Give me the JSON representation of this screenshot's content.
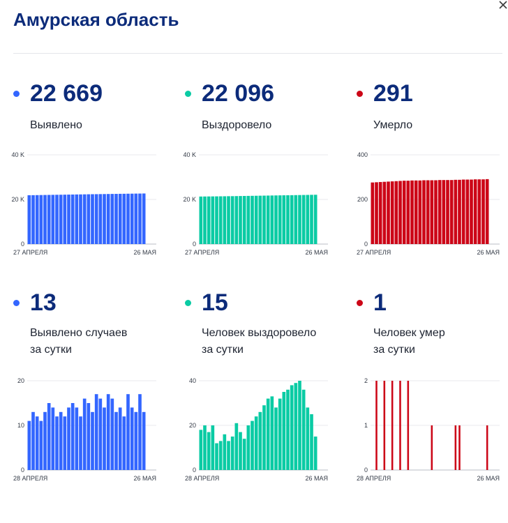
{
  "title": "Амурская область",
  "colors": {
    "blue": "#3366ff",
    "green": "#0acba4",
    "red": "#cc0617",
    "navy": "#0c2b7a"
  },
  "panels": [
    {
      "id": "detected",
      "color": "#3366ff",
      "value": "22 669",
      "label": [
        "Выявлено"
      ]
    },
    {
      "id": "recovered",
      "color": "#0acba4",
      "value": "22 096",
      "label": [
        "Выздоровело"
      ]
    },
    {
      "id": "deaths",
      "color": "#cc0617",
      "value": "291",
      "label": [
        "Умерло"
      ]
    },
    {
      "id": "detected-daily",
      "color": "#3366ff",
      "value": "13",
      "label": [
        "Выявлено случаев",
        "за сутки"
      ]
    },
    {
      "id": "recovered-daily",
      "color": "#0acba4",
      "value": "15",
      "label": [
        "Человек выздоровело",
        "за сутки"
      ]
    },
    {
      "id": "deaths-daily",
      "color": "#cc0617",
      "value": "1",
      "label": [
        "Человек умер",
        "за сутки"
      ]
    }
  ],
  "chart_data": [
    {
      "type": "bar",
      "color": "#3366ff",
      "ylim": [
        0,
        40000
      ],
      "yticks": [
        "0",
        "20 K",
        "40 K"
      ],
      "x_start": "27 АПРЕЛЯ",
      "x_end": "26 МАЯ",
      "values": [
        21880,
        21910,
        21940,
        21970,
        22000,
        22030,
        22060,
        22090,
        22110,
        22140,
        22170,
        22200,
        22230,
        22250,
        22280,
        22310,
        22340,
        22360,
        22390,
        22410,
        22440,
        22470,
        22490,
        22520,
        22540,
        22570,
        22590,
        22620,
        22640,
        22669
      ]
    },
    {
      "type": "bar",
      "color": "#0acba4",
      "ylim": [
        0,
        40000
      ],
      "yticks": [
        "0",
        "20 K",
        "40 K"
      ],
      "x_start": "27 АПРЕЛЯ",
      "x_end": "26 МАЯ",
      "values": [
        21300,
        21320,
        21340,
        21360,
        21380,
        21400,
        21420,
        21450,
        21470,
        21500,
        21530,
        21560,
        21590,
        21620,
        21650,
        21680,
        21710,
        21740,
        21770,
        21800,
        21830,
        21860,
        21880,
        21910,
        21940,
        21970,
        22000,
        22030,
        22070,
        22096
      ]
    },
    {
      "type": "bar",
      "color": "#cc0617",
      "ylim": [
        0,
        400
      ],
      "yticks": [
        "0",
        "200",
        "400"
      ],
      "x_start": "27 АПРЕЛЯ",
      "x_end": "26 МАЯ",
      "values": [
        276,
        277,
        278,
        279,
        280,
        281,
        282,
        283,
        284,
        284,
        285,
        285,
        285,
        286,
        286,
        286,
        286,
        287,
        287,
        287,
        287,
        288,
        288,
        289,
        289,
        289,
        290,
        290,
        290,
        291
      ]
    },
    {
      "type": "bar",
      "color": "#3366ff",
      "ylim": [
        0,
        20
      ],
      "yticks": [
        "0",
        "10",
        "20"
      ],
      "x_start": "28 АПРЕЛЯ",
      "x_end": "26 МАЯ",
      "values": [
        11,
        13,
        12,
        11,
        13,
        15,
        14,
        12,
        13,
        12,
        14,
        15,
        14,
        12,
        16,
        15,
        13,
        17,
        16,
        14,
        17,
        16,
        13,
        14,
        12,
        17,
        14,
        13,
        17,
        13
      ]
    },
    {
      "type": "bar",
      "color": "#0acba4",
      "ylim": [
        0,
        40
      ],
      "yticks": [
        "0",
        "20",
        "40"
      ],
      "x_start": "28 АПРЕЛЯ",
      "x_end": "26 МАЯ",
      "values": [
        18,
        20,
        17,
        20,
        12,
        13,
        16,
        13,
        15,
        21,
        17,
        14,
        20,
        22,
        24,
        26,
        29,
        32,
        33,
        28,
        32,
        35,
        36,
        38,
        39,
        40,
        36,
        28,
        25,
        15
      ]
    },
    {
      "type": "bar",
      "color": "#cc0617",
      "ylim": [
        0,
        2
      ],
      "yticks": [
        "0",
        "1",
        "2"
      ],
      "x_start": "28 АПРЕЛЯ",
      "x_end": "26 МАЯ",
      "values": [
        0,
        2,
        0,
        2,
        0,
        2,
        0,
        2,
        0,
        2,
        0,
        0,
        0,
        0,
        0,
        1,
        0,
        0,
        0,
        0,
        0,
        1,
        1,
        0,
        0,
        0,
        0,
        0,
        0,
        1
      ]
    }
  ]
}
